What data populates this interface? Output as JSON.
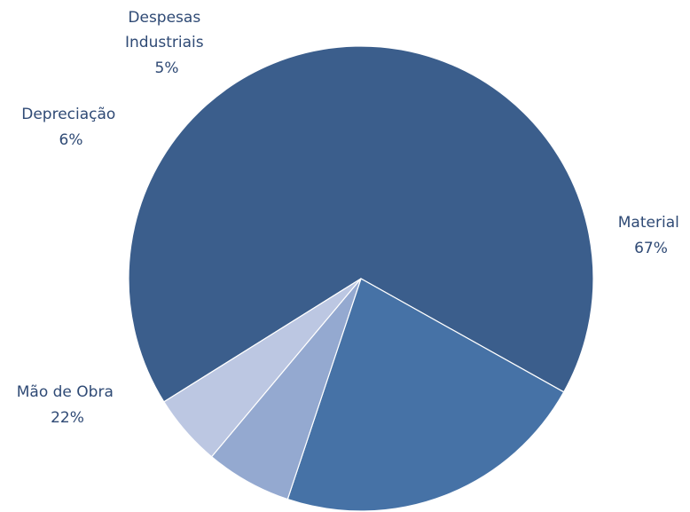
{
  "chart_data": {
    "type": "pie",
    "title": "",
    "slices": [
      {
        "label": "Material",
        "value": 67,
        "pct_label": "67%",
        "color": "#3b5e8c"
      },
      {
        "label": "Mão de Obra",
        "value": 22,
        "pct_label": "22%",
        "color": "#4672a6"
      },
      {
        "label": "Depreciação",
        "value": 6,
        "pct_label": "6%",
        "color": "#94a9d0"
      },
      {
        "label": "Despesas Industriais",
        "label_lines": [
          "Despesas",
          "Industriais"
        ],
        "value": 5,
        "pct_label": "5%",
        "color": "#bcc7e2"
      }
    ],
    "data_labels": "outside",
    "legend": "none"
  }
}
